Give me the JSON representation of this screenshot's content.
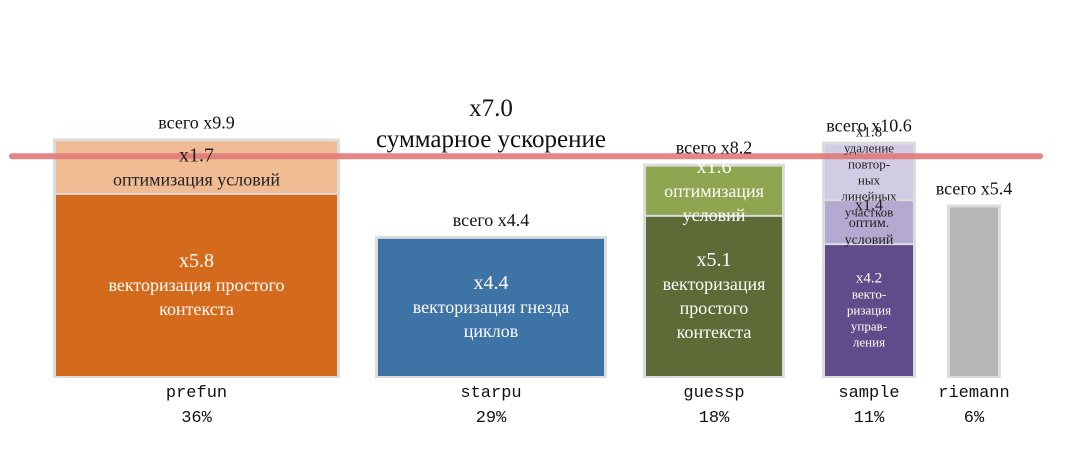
{
  "chart_data": {
    "type": "bar",
    "stacked": true,
    "summary": {
      "value_label": "x7.0",
      "text": "суммарное ускорение",
      "speedup": 7.0
    },
    "categories": [
      "prefun",
      "starpu",
      "guessp",
      "sample",
      "riemann"
    ],
    "shares": [
      "36%",
      "29%",
      "18%",
      "11%",
      "6%"
    ],
    "totals": [
      "всего x9.9",
      "всего x4.4",
      "всего x8.2",
      "всего x10.6",
      "всего x5.4"
    ],
    "total_values": [
      9.9,
      4.4,
      8.2,
      10.6,
      5.4
    ],
    "bars": [
      {
        "segments": [
          {
            "value": 5.8,
            "lines": [
              "x5.8",
              "векторизация простого",
              "контекста"
            ],
            "color": "#d46a1c"
          },
          {
            "value": 1.7,
            "lines": [
              "x1.7",
              "оптимизация условий"
            ],
            "color": "#f1bc94"
          }
        ]
      },
      {
        "segments": [
          {
            "value": 4.4,
            "lines": [
              "x4.4",
              "векторизация гнезда",
              "циклов"
            ],
            "color": "#3e73a6"
          }
        ]
      },
      {
        "segments": [
          {
            "value": 5.1,
            "lines": [
              "x5.1",
              "векторизация",
              "простого",
              "контекста"
            ],
            "color": "#5d6b36"
          },
          {
            "value": 1.6,
            "lines": [
              "x1.6",
              "оптимизация",
              "условий"
            ],
            "color": "#8fa651"
          }
        ]
      },
      {
        "segments": [
          {
            "value": 4.2,
            "lines": [
              "x4.2",
              "векто-",
              "ризация",
              "управ-",
              "ления"
            ],
            "color": "#604c8a"
          },
          {
            "value": 1.4,
            "lines": [
              "x1.4",
              "оптим.",
              "условий"
            ],
            "color": "#b4a9d0"
          },
          {
            "value": 1.8,
            "lines": [
              "x1.8",
              "удаление",
              "повтор-",
              "ных",
              "линейных",
              "участков"
            ],
            "color": "#d2cbe4"
          }
        ]
      },
      {
        "segments": [
          {
            "value": 5.4,
            "lines": [],
            "color": "#b6b6b6"
          }
        ]
      }
    ],
    "colors": {
      "reference_line": "#e07a7a",
      "bar_border": "#dcdcdc"
    }
  }
}
